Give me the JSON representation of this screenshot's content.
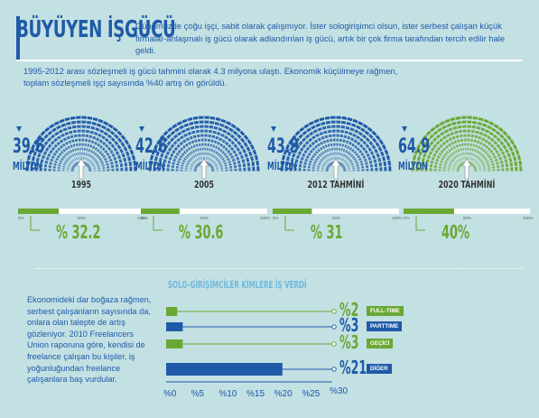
{
  "header": {
    "title": "BÜYÜYEN İŞGÜCÜ",
    "intro": "Günümüzde çoğu işçi, sabit olarak çalışmıyor. İster sologirişimci olsun, ister serbest çalışan küçük firmalar-anlaşmalı iş gücü olarak adlandırılan iş gücü, artık bir çok firma tarafından tercih edilir hale geldi.",
    "statline": "1995-2012 arası sözleşmeli iş gücü tahmini olarak 4.3 milyona ulaştı. Ekonomik küçülmeye rağmen, toplam sözleşmeli işçi sayısında %40 artış ön görüldü."
  },
  "side_text": "Ekonomideki dar boğaza rağmen, serbest çalışanların sayısında da, onlara olan talepte de artış gözleniyor. 2010 Freelancers Union raporuna göre, kendisi de freelance çalışan bu kişiler, iş yoğunluğundan freelance çalışanlara baş vurdular.",
  "colors": {
    "blue": "#1f5aa8",
    "light_blue": "#4aa6de",
    "green": "#6aa833",
    "bg": "#c3e0e3"
  },
  "chart_data": [
    {
      "type": "semicircle-gauge",
      "unit": "MİLYON",
      "items": [
        {
          "label": "1995",
          "value": 39.6,
          "value_text": "39.6",
          "share_pct": 32.2,
          "share_text": "% 32.2",
          "color": "blue"
        },
        {
          "label": "2005",
          "value": 42.6,
          "value_text": "42.6",
          "share_pct": 30.6,
          "share_text": "% 30.6",
          "color": "blue"
        },
        {
          "label": "2012 TAHMİNİ",
          "value": 43.9,
          "value_text": "43.9",
          "share_pct": 31,
          "share_text": "% 31",
          "color": "blue"
        },
        {
          "label": "2020 TAHMİNİ",
          "value": 64.9,
          "value_text": "64.9",
          "share_pct": 40,
          "share_text": "40%",
          "color": "green"
        }
      ],
      "scale_ticks": [
        "0%",
        "50%",
        "100%"
      ]
    },
    {
      "type": "bar",
      "orientation": "horizontal",
      "title": "SOLO-GİRİŞİMCİLER KİMLERE İŞ VERDİ",
      "categories": [
        "FULL-TIME",
        "PARTTIME",
        "GEÇİCİ",
        "DİĞER"
      ],
      "values": [
        2,
        3,
        3,
        21
      ],
      "value_text": [
        "%2",
        "%3",
        "%3",
        "%21"
      ],
      "colors": [
        "#6aa833",
        "#1f5aa8",
        "#6aa833",
        "#1f5aa8"
      ],
      "x_ticks": [
        "%0",
        "%5",
        "%10",
        "%15",
        "%20",
        "%25",
        "%30"
      ],
      "xlim": [
        0,
        30
      ]
    }
  ]
}
